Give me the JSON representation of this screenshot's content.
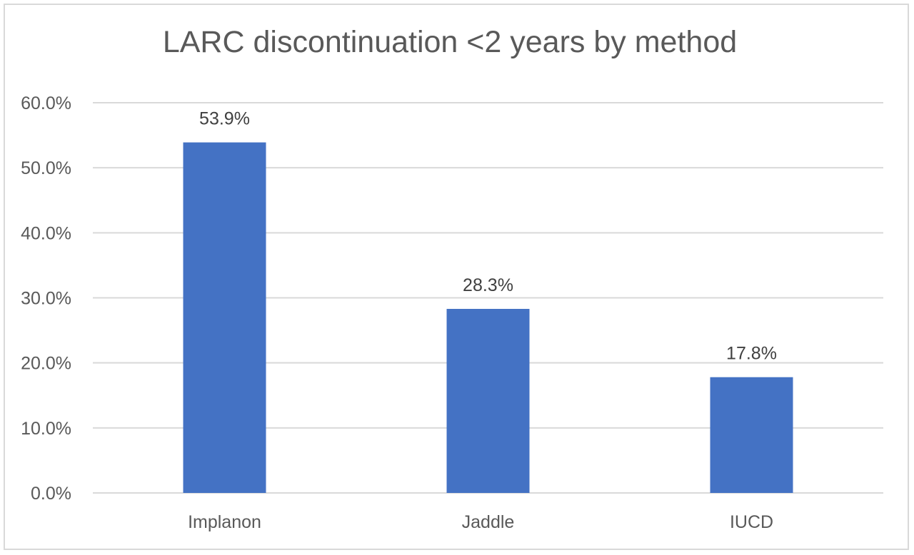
{
  "chart_data": {
    "type": "bar",
    "title": "LARC discontinuation <2 years by method",
    "xlabel": "",
    "ylabel": "",
    "categories": [
      "Implanon",
      "Jaddle",
      "IUCD"
    ],
    "values": [
      53.9,
      28.3,
      17.8
    ],
    "data_labels": [
      "53.9%",
      "28.3%",
      "17.8%"
    ],
    "ylim": [
      0,
      60
    ],
    "yticks": [
      0,
      10,
      20,
      30,
      40,
      50,
      60
    ],
    "ytick_labels": [
      "0.0%",
      "10.0%",
      "20.0%",
      "30.0%",
      "40.0%",
      "50.0%",
      "60.0%"
    ],
    "grid": true,
    "legend": "none",
    "bar_color": "#4472c4",
    "grid_color": "#d9d9d9"
  }
}
